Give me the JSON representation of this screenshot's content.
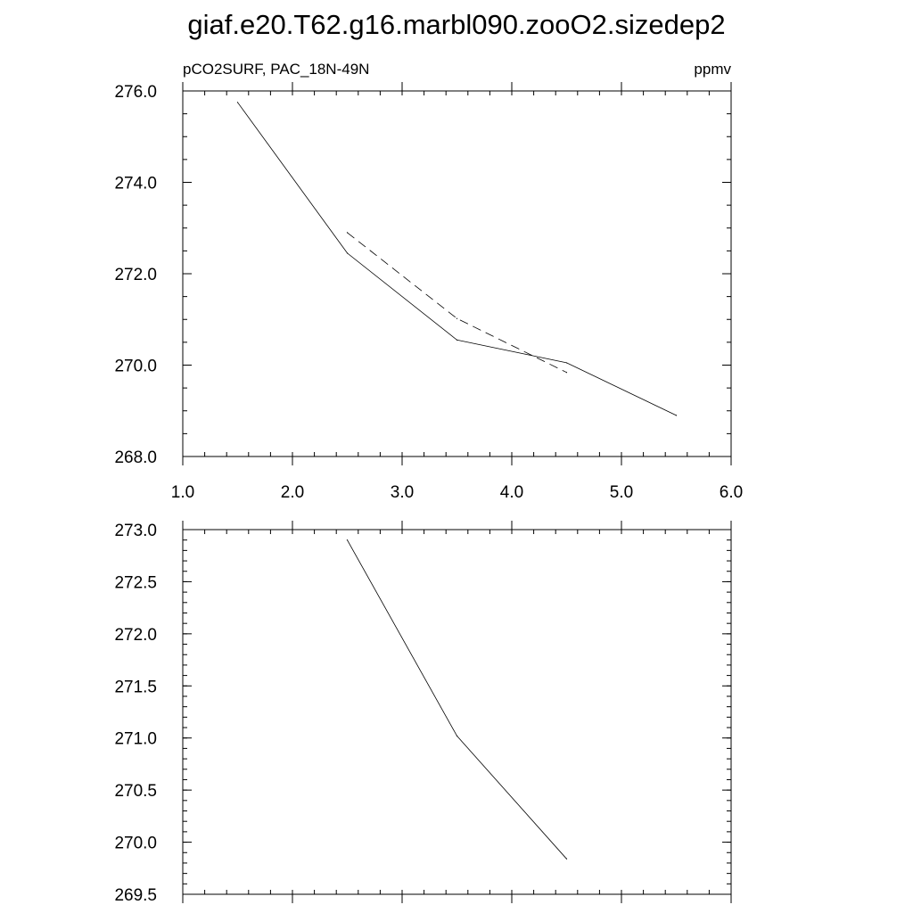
{
  "figure": {
    "title": "giaf.e20.T62.g16.marbl090.zooO2.sizedep2"
  },
  "chart_data": [
    {
      "type": "line",
      "subtitle_left": "pCO2SURF, PAC_18N-49N",
      "subtitle_right": "ppmv",
      "xlim": [
        1.0,
        6.0
      ],
      "ylim": [
        268.0,
        276.0
      ],
      "xticks": [
        "1.0",
        "2.0",
        "3.0",
        "4.0",
        "5.0",
        "6.0"
      ],
      "yticks": [
        "268.0",
        "270.0",
        "272.0",
        "274.0",
        "276.0"
      ],
      "series": [
        {
          "style": "solid",
          "x": [
            1.5,
            2.5,
            3.5,
            4.5,
            5.5
          ],
          "y": [
            275.75,
            272.45,
            270.55,
            270.05,
            268.9
          ]
        },
        {
          "style": "dashed",
          "x": [
            2.5,
            3.5,
            4.5
          ],
          "y": [
            272.9,
            271.02,
            269.84
          ]
        }
      ]
    },
    {
      "type": "line",
      "xlim": [
        1.0,
        6.0
      ],
      "ylim": [
        269.5,
        273.0
      ],
      "yticks": [
        "269.5",
        "270.0",
        "270.5",
        "271.0",
        "271.5",
        "272.0",
        "272.5",
        "273.0"
      ],
      "series": [
        {
          "style": "solid",
          "x": [
            2.5,
            3.5,
            4.5
          ],
          "y": [
            272.9,
            271.02,
            269.84
          ]
        }
      ]
    }
  ]
}
